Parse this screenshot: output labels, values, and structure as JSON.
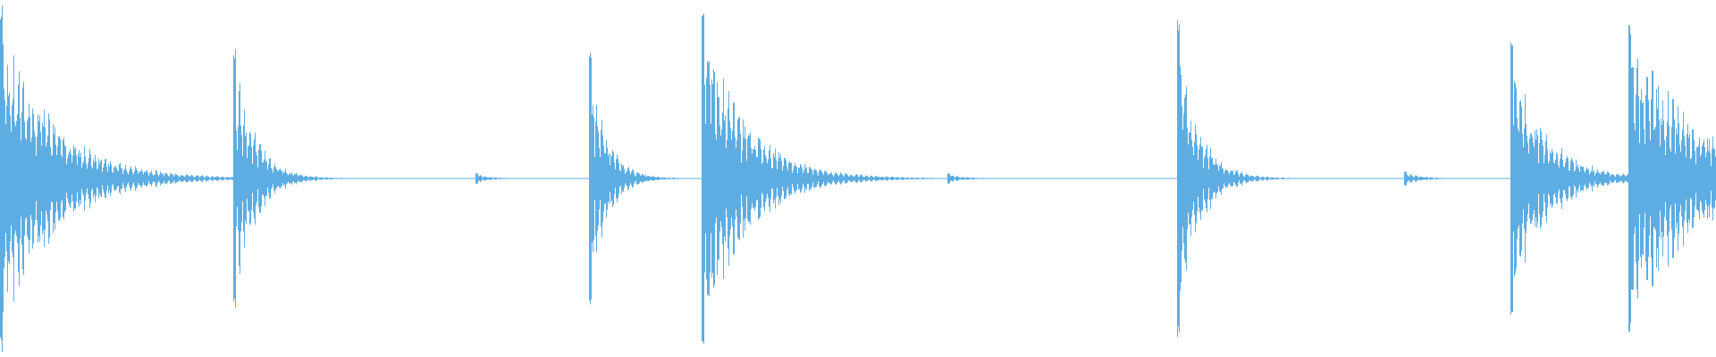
{
  "chart_data": {
    "type": "waveform",
    "color": "#5dade2",
    "ylim": [
      -1,
      1
    ],
    "events": [
      {
        "x": 0.0,
        "amplitude": 1.0,
        "decay": 0.03
      },
      {
        "x": 0.136,
        "amplitude": 0.74,
        "decay": 0.012
      },
      {
        "x": 0.277,
        "amplitude": 0.03,
        "decay": 0.008
      },
      {
        "x": 0.343,
        "amplitude": 0.72,
        "decay": 0.01
      },
      {
        "x": 0.409,
        "amplitude": 1.0,
        "decay": 0.025
      },
      {
        "x": 0.552,
        "amplitude": 0.03,
        "decay": 0.01
      },
      {
        "x": 0.686,
        "amplitude": 0.9,
        "decay": 0.012
      },
      {
        "x": 0.818,
        "amplitude": 0.04,
        "decay": 0.01
      },
      {
        "x": 0.88,
        "amplitude": 0.8,
        "decay": 0.02
      },
      {
        "x": 0.949,
        "amplitude": 0.9,
        "decay": 0.04
      }
    ]
  }
}
